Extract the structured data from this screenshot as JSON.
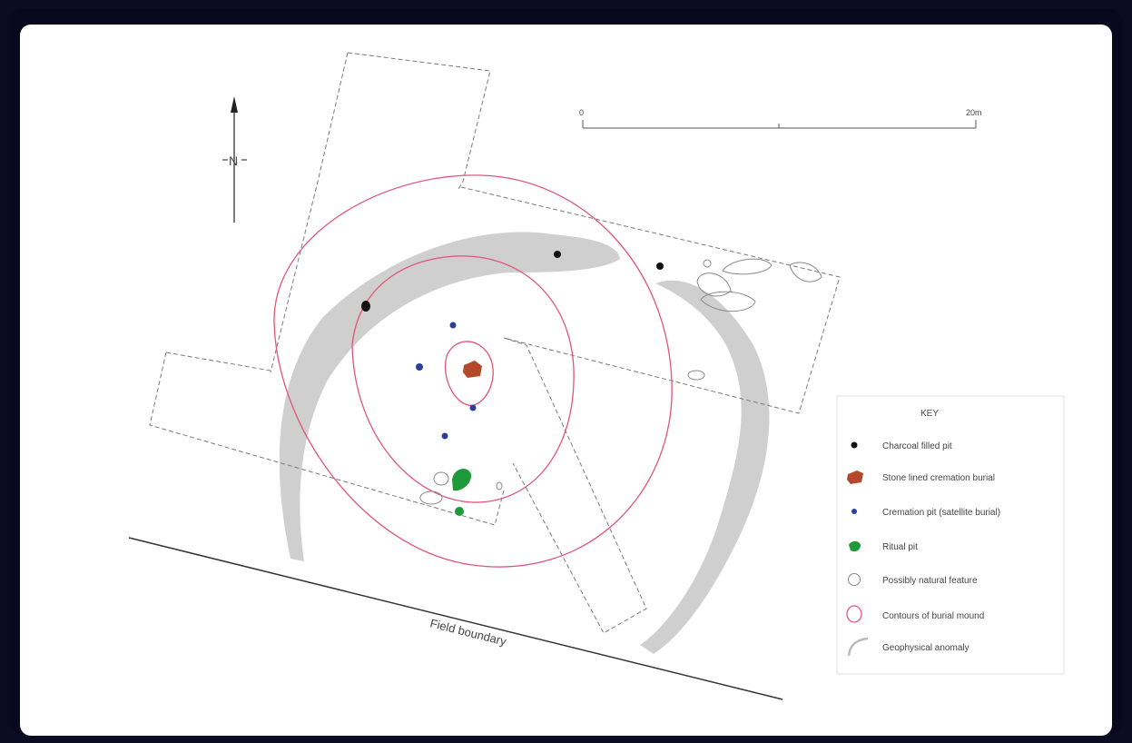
{
  "map": {
    "north_label": "N",
    "scale": {
      "start_label": "0",
      "end_label": "20m"
    },
    "field_boundary_label": "Field boundary"
  },
  "key": {
    "title": "KEY",
    "items": [
      {
        "label": "Charcoal filled pit",
        "symbol": "black-dot",
        "color": "#111111"
      },
      {
        "label": "Stone lined cremation burial",
        "symbol": "red-shape",
        "color": "#b5472a"
      },
      {
        "label": "Cremation pit (satellite burial)",
        "symbol": "blue-dot",
        "color": "#2a3f9a"
      },
      {
        "label": "Ritual pit",
        "symbol": "green-dot",
        "color": "#1f9a3a"
      },
      {
        "label": "Possibly natural feature",
        "symbol": "open-circle",
        "color": "#777777"
      },
      {
        "label": "Contours of burial mound",
        "symbol": "pink-ring",
        "color": "#e0557a"
      },
      {
        "label": "Geophysical anomaly",
        "symbol": "grey-arc",
        "color": "#cccccc"
      }
    ]
  }
}
